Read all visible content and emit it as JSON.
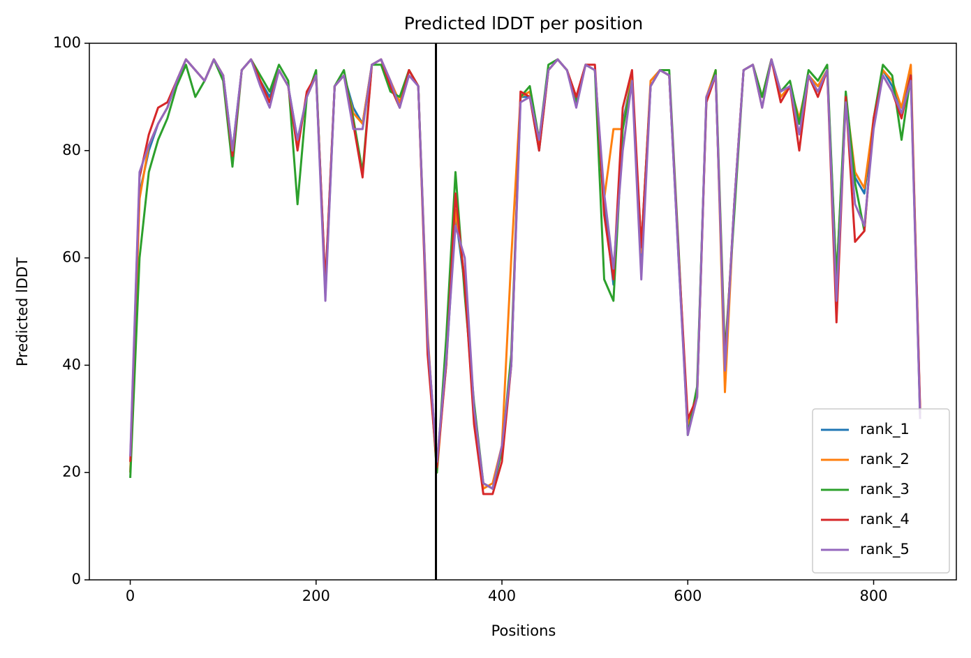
{
  "chart_data": {
    "type": "line",
    "title": "Predicted lDDT per position",
    "x_label": "Positions",
    "y_label": "Predicted lDDT",
    "x": [
      0,
      10,
      20,
      30,
      40,
      50,
      60,
      70,
      80,
      90,
      100,
      110,
      120,
      130,
      140,
      150,
      160,
      170,
      180,
      190,
      200,
      210,
      220,
      230,
      240,
      250,
      260,
      270,
      280,
      290,
      300,
      310,
      320,
      330,
      340,
      350,
      360,
      370,
      380,
      390,
      400,
      410,
      420,
      430,
      440,
      450,
      460,
      470,
      480,
      490,
      500,
      510,
      520,
      530,
      540,
      550,
      560,
      570,
      580,
      590,
      600,
      610,
      620,
      630,
      640,
      650,
      660,
      670,
      680,
      690,
      700,
      710,
      720,
      730,
      740,
      750,
      760,
      770,
      780,
      790,
      800,
      810,
      820,
      830,
      840,
      850
    ],
    "series": [
      {
        "name": "rank_1",
        "color": "#1f77b4",
        "values": [
          20,
          72,
          80,
          85,
          88,
          93,
          97,
          95,
          93,
          97,
          94,
          80,
          95,
          97,
          93,
          90,
          95,
          92,
          82,
          90,
          94,
          55,
          92,
          94,
          88,
          85,
          96,
          97,
          92,
          88,
          95,
          92,
          45,
          22,
          40,
          68,
          55,
          30,
          18,
          17,
          24,
          40,
          90,
          90,
          80,
          95,
          97,
          95,
          90,
          96,
          95,
          70,
          55,
          85,
          94,
          60,
          92,
          95,
          94,
          60,
          28,
          35,
          90,
          94,
          40,
          70,
          95,
          96,
          90,
          97,
          90,
          92,
          85,
          94,
          92,
          95,
          55,
          90,
          75,
          72,
          85,
          95,
          92,
          88,
          95,
          30
        ]
      },
      {
        "name": "rank_2",
        "color": "#ff7f0e",
        "values": [
          20,
          71,
          81,
          85,
          88,
          93,
          97,
          95,
          93,
          97,
          94,
          79,
          95,
          97,
          93,
          89,
          95,
          92,
          81,
          90,
          94,
          54,
          92,
          94,
          87,
          85,
          96,
          97,
          93,
          89,
          95,
          92,
          46,
          20,
          41,
          69,
          56,
          31,
          17,
          18,
          25,
          60,
          90,
          91,
          81,
          95,
          97,
          95,
          90,
          96,
          95,
          71,
          84,
          84,
          94,
          61,
          93,
          95,
          94,
          61,
          29,
          34,
          90,
          95,
          35,
          70,
          95,
          96,
          90,
          97,
          90,
          92,
          86,
          94,
          92,
          95,
          56,
          90,
          76,
          73,
          86,
          95,
          93,
          88,
          96,
          31
        ]
      },
      {
        "name": "rank_3",
        "color": "#2ca02c",
        "values": [
          19,
          60,
          76,
          82,
          86,
          92,
          96,
          90,
          93,
          97,
          93,
          77,
          95,
          97,
          94,
          91,
          96,
          93,
          70,
          90,
          95,
          53,
          92,
          95,
          86,
          76,
          96,
          96,
          91,
          90,
          95,
          92,
          44,
          20,
          45,
          76,
          53,
          33,
          18,
          17,
          24,
          42,
          90,
          92,
          82,
          96,
          97,
          95,
          89,
          96,
          95,
          56,
          52,
          84,
          93,
          62,
          92,
          95,
          95,
          62,
          27,
          36,
          89,
          95,
          42,
          68,
          95,
          96,
          90,
          97,
          91,
          93,
          85,
          95,
          93,
          96,
          56,
          91,
          74,
          65,
          86,
          96,
          94,
          82,
          94,
          31
        ]
      },
      {
        "name": "rank_4",
        "color": "#d62728",
        "values": [
          22,
          75,
          83,
          88,
          89,
          93,
          97,
          95,
          93,
          97,
          94,
          79,
          95,
          97,
          93,
          89,
          95,
          92,
          80,
          91,
          94,
          55,
          92,
          94,
          85,
          75,
          96,
          97,
          92,
          88,
          95,
          92,
          42,
          21,
          40,
          72,
          55,
          29,
          16,
          16,
          22,
          40,
          91,
          90,
          80,
          95,
          97,
          95,
          90,
          96,
          96,
          68,
          56,
          88,
          95,
          62,
          92,
          95,
          94,
          61,
          30,
          34,
          89,
          94,
          40,
          70,
          95,
          96,
          88,
          97,
          89,
          92,
          80,
          94,
          90,
          95,
          48,
          90,
          63,
          65,
          86,
          94,
          91,
          86,
          94,
          32
        ]
      },
      {
        "name": "rank_5",
        "color": "#9467bd",
        "values": [
          23,
          76,
          81,
          85,
          88,
          93,
          97,
          95,
          93,
          97,
          94,
          80,
          95,
          97,
          92,
          88,
          95,
          92,
          82,
          90,
          94,
          52,
          92,
          94,
          84,
          84,
          96,
          97,
          93,
          88,
          94,
          92,
          45,
          22,
          41,
          66,
          60,
          32,
          18,
          17,
          25,
          40,
          89,
          90,
          82,
          95,
          97,
          95,
          88,
          96,
          95,
          72,
          58,
          80,
          93,
          56,
          92,
          95,
          94,
          60,
          27,
          34,
          90,
          94,
          39,
          70,
          95,
          96,
          88,
          97,
          91,
          92,
          83,
          94,
          91,
          95,
          52,
          89,
          70,
          66,
          84,
          94,
          91,
          87,
          93,
          30
        ]
      }
    ],
    "vline": 329,
    "vline_color": "#000000",
    "xlim": [
      -44,
      889
    ],
    "ylim": [
      0,
      100
    ],
    "xticks": [
      0,
      200,
      400,
      600,
      800
    ],
    "yticks": [
      0,
      20,
      40,
      60,
      80,
      100
    ],
    "legend": "lower right"
  }
}
